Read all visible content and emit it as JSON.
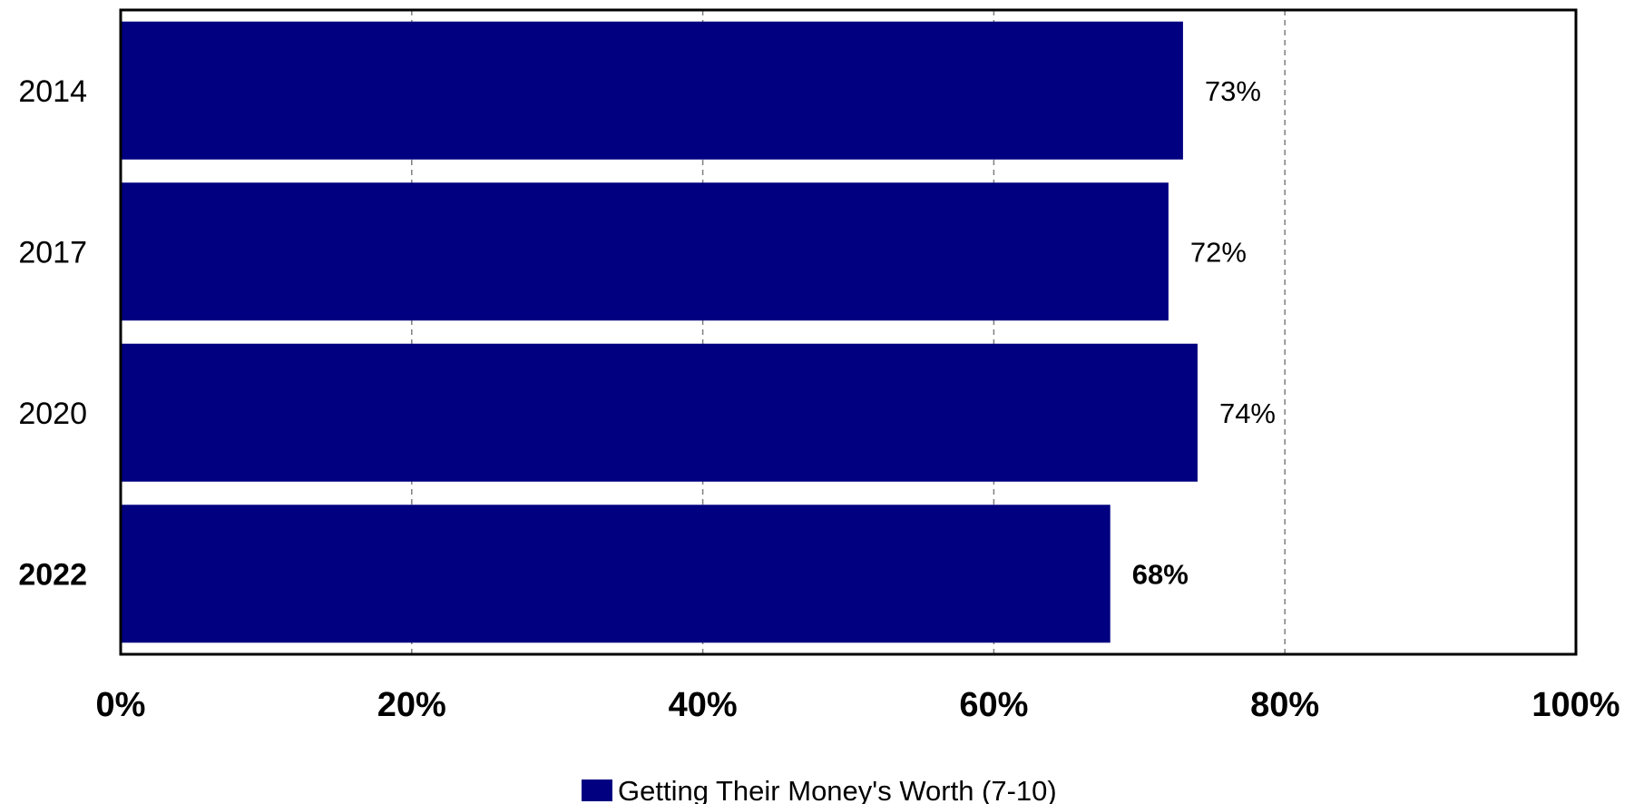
{
  "chart_data": {
    "type": "bar",
    "orientation": "horizontal",
    "categories": [
      "2014",
      "2017",
      "2020",
      "2022"
    ],
    "emphasized_categories": [
      "2022"
    ],
    "series": [
      {
        "name": "Getting Their Money's Worth (7-10)",
        "values": [
          73,
          72,
          74,
          68
        ],
        "data_labels": [
          "73%",
          "72%",
          "74%",
          "68%"
        ],
        "color": "#000080"
      }
    ],
    "xlim": [
      0,
      100
    ],
    "x_ticks": [
      0,
      20,
      40,
      60,
      80,
      100
    ],
    "x_tick_labels": [
      "0%",
      "20%",
      "40%",
      "60%",
      "80%",
      "100%"
    ],
    "grid": "vertical dashed",
    "legend_position": "bottom-center",
    "title": "",
    "xlabel": "",
    "ylabel": ""
  }
}
